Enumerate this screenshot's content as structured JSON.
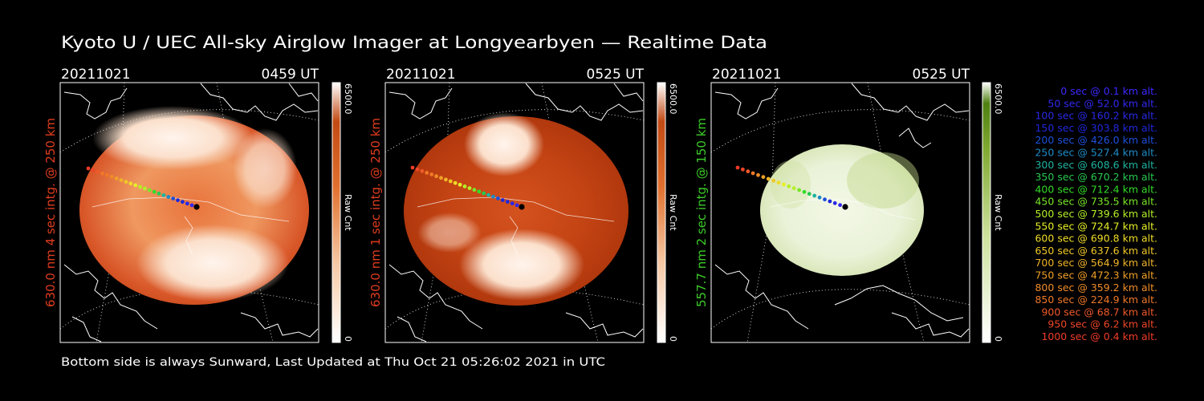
{
  "title": "Kyoto U / UEC All-sky Airglow Imager at Longyearbyen — Realtime Data",
  "footer": "Bottom side is always Sunward, Last Updated at Thu Oct 21 05:26:02 2021 in UTC",
  "panels": [
    {
      "date": "20211021",
      "time": "0459 UT",
      "side_label": "630.0 nm  4 sec intg. @ 250 km",
      "label_color": "#e03c1e",
      "colorbar_max": "6500.0",
      "colorbar_min": "0",
      "colorbar_label": "Raw Cnt",
      "colormap": "red"
    },
    {
      "date": "20211021",
      "time": "0525 UT",
      "side_label": "630.0 nm  1 sec intg. @ 250 km",
      "label_color": "#e03c1e",
      "colorbar_max": "6500.0",
      "colorbar_min": "0",
      "colorbar_label": "Raw Cnt",
      "colormap": "red"
    },
    {
      "date": "20211021",
      "time": "0525 UT",
      "side_label": "557.7 nm  2 sec intg. @ 150 km",
      "label_color": "#3ccc28",
      "colorbar_max": "6500.0",
      "colorbar_min": "0",
      "colorbar_label": "Raw Cnt",
      "colormap": "green"
    }
  ],
  "legend": [
    {
      "text": " 0 sec @    0.1 km alt.",
      "color": "#3c28ff"
    },
    {
      "text": "  50 sec @  52.0 km alt.",
      "color": "#3228f0"
    },
    {
      "text": " 100 sec @ 160.2 km alt.",
      "color": "#2828e6"
    },
    {
      "text": " 150 sec @ 303.8 km alt.",
      "color": "#1e28dc"
    },
    {
      "text": " 200 sec @ 426.0 km alt.",
      "color": "#1e50dc"
    },
    {
      "text": " 250 sec @ 527.4 km alt.",
      "color": "#1e8cc8"
    },
    {
      "text": " 300 sec @ 608.6 km alt.",
      "color": "#1eb4a0"
    },
    {
      "text": " 350 sec @ 670.2 km alt.",
      "color": "#28c850"
    },
    {
      "text": " 400 sec @ 712.4 km alt.",
      "color": "#32dc28"
    },
    {
      "text": " 450 sec @ 735.5 km alt.",
      "color": "#78e628"
    },
    {
      "text": " 500 sec @ 739.6 km alt.",
      "color": "#b4f028"
    },
    {
      "text": " 550 sec @ 724.7 km alt.",
      "color": "#e6f028"
    },
    {
      "text": " 600 sec @ 690.8 km alt.",
      "color": "#f0dc28"
    },
    {
      "text": " 650 sec @ 637.6 km alt.",
      "color": "#f0c828"
    },
    {
      "text": " 700 sec @ 564.9 km alt.",
      "color": "#f0b428"
    },
    {
      "text": " 750 sec @ 472.3 km alt.",
      "color": "#f0a028"
    },
    {
      "text": " 800 sec @ 359.2 km alt.",
      "color": "#f08c28"
    },
    {
      "text": " 850 sec @ 224.9 km alt.",
      "color": "#f07828"
    },
    {
      "text": " 900 sec @   68.7 km alt.",
      "color": "#f05a28"
    },
    {
      "text": " 950 sec @    6.2 km alt.",
      "color": "#f04628"
    },
    {
      "text": "1000 sec @    0.4 km alt.",
      "color": "#f03c28"
    }
  ]
}
